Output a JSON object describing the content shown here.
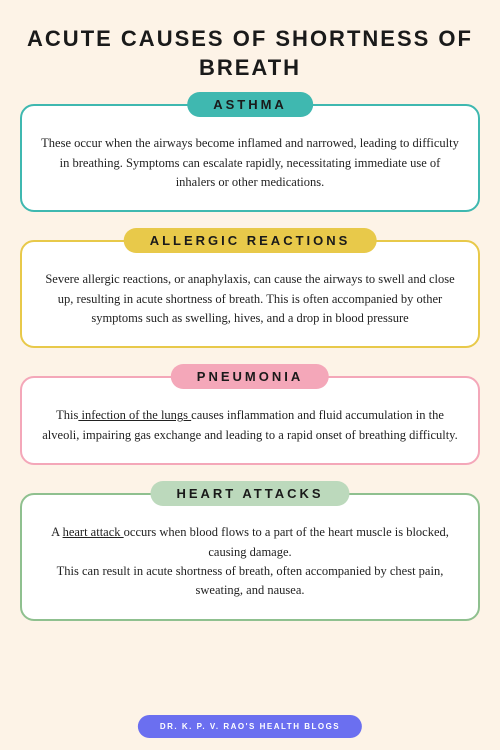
{
  "title": "ACUTE CAUSES OF SHORTNESS OF BREATH",
  "cards": [
    {
      "label": "ASTHMA",
      "pill_bg": "#3fb8b0",
      "border": "#3fb8b0",
      "body_html": "These occur when the airways become inflamed and narrowed, leading to difficulty in breathing. Symptoms can escalate rapidly, necessitating immediate use of inhalers or other medications."
    },
    {
      "label": "ALLERGIC REACTIONS",
      "pill_bg": "#e8c94a",
      "border": "#e8c94a",
      "body_html": "Severe allergic reactions, or anaphylaxis, can cause the airways to swell and close up, resulting in acute shortness of breath. This is often accompanied by other symptoms such as swelling, hives, and a drop in blood pressure"
    },
    {
      "label": "PNEUMONIA",
      "pill_bg": "#f4a7b9",
      "border": "#f4a7b9",
      "body_html": "This<span class=\"u\"> infection of the lungs </span>causes inflammation and fluid accumulation in the alveoli, impairing gas exchange and leading to a rapid onset of breathing difficulty."
    },
    {
      "label": "HEART ATTACKS",
      "pill_bg": "#bcd9bc",
      "border": "#8fc08f",
      "body_html": "A <span class=\"u\">heart attack </span>occurs when blood flows to a part of the heart muscle is blocked, causing damage.<br>This can result in acute shortness of breath, often accompanied by chest pain, sweating, and nausea."
    }
  ],
  "footer": "DR. K. P. V. RAO'S HEALTH BLOGS",
  "footer_bg": "#6b6ff0"
}
